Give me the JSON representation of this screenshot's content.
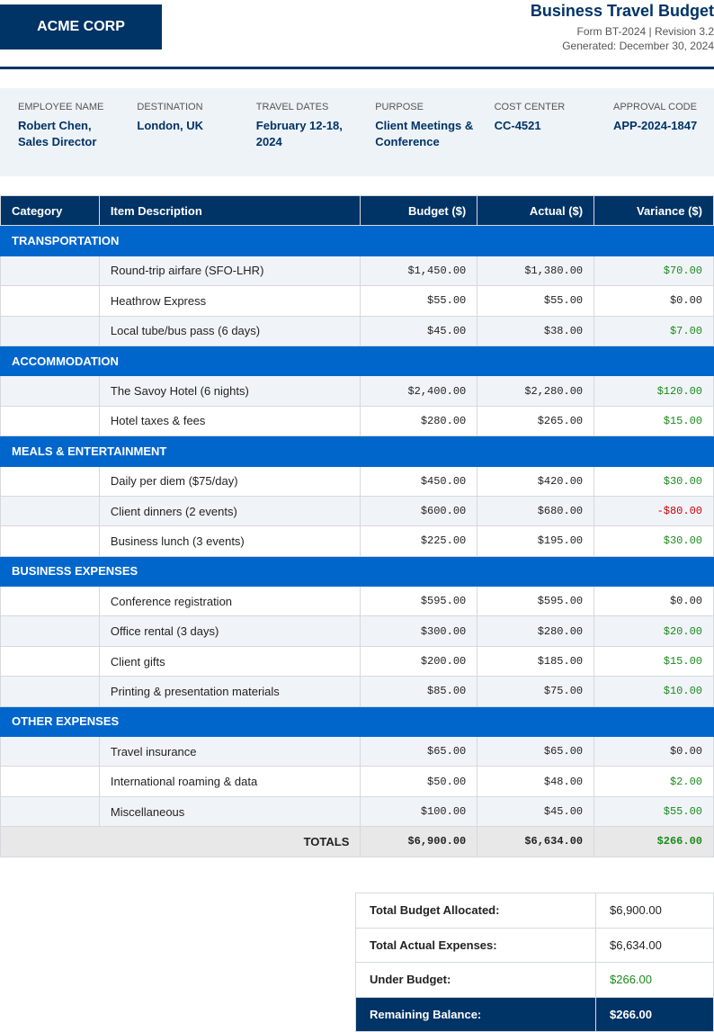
{
  "header": {
    "logo": "ACME CORP",
    "title": "Business Travel Budget",
    "form": "Form BT-2024 | Revision 3.2",
    "generated": "Generated: December 30, 2024"
  },
  "info": [
    {
      "label": "EMPLOYEE NAME",
      "value": "Robert Chen, Sales Director"
    },
    {
      "label": "DESTINATION",
      "value": "London, UK"
    },
    {
      "label": "TRAVEL DATES",
      "value": "February 12-18, 2024"
    },
    {
      "label": "PURPOSE",
      "value": "Client Meetings & Conference"
    },
    {
      "label": "COST CENTER",
      "value": "CC-4521"
    },
    {
      "label": "APPROVAL CODE",
      "value": "APP-2024-1847"
    }
  ],
  "table": {
    "columns": [
      "Category",
      "Item Description",
      "Budget ($)",
      "Actual ($)",
      "Variance ($)"
    ],
    "sections": [
      {
        "name": "TRANSPORTATION",
        "items": [
          {
            "description": "Round-trip airfare (SFO-LHR)",
            "budget": "$1,450.00",
            "actual": "$1,380.00",
            "variance": "$70.00"
          },
          {
            "description": "Heathrow Express",
            "budget": "$55.00",
            "actual": "$55.00",
            "variance": "$0.00"
          },
          {
            "description": "Local tube/bus pass (6 days)",
            "budget": "$45.00",
            "actual": "$38.00",
            "variance": "$7.00"
          }
        ]
      },
      {
        "name": "ACCOMMODATION",
        "items": [
          {
            "description": "The Savoy Hotel (6 nights)",
            "budget": "$2,400.00",
            "actual": "$2,280.00",
            "variance": "$120.00"
          },
          {
            "description": "Hotel taxes & fees",
            "budget": "$280.00",
            "actual": "$265.00",
            "variance": "$15.00"
          }
        ]
      },
      {
        "name": "MEALS & ENTERTAINMENT",
        "items": [
          {
            "description": "Daily per diem ($75/day)",
            "budget": "$450.00",
            "actual": "$420.00",
            "variance": "$30.00"
          },
          {
            "description": "Client dinners (2 events)",
            "budget": "$600.00",
            "actual": "$680.00",
            "variance": "-$80.00"
          },
          {
            "description": "Business lunch (3 events)",
            "budget": "$225.00",
            "actual": "$195.00",
            "variance": "$30.00"
          }
        ]
      },
      {
        "name": "BUSINESS EXPENSES",
        "items": [
          {
            "description": "Conference registration",
            "budget": "$595.00",
            "actual": "$595.00",
            "variance": "$0.00"
          },
          {
            "description": "Office rental (3 days)",
            "budget": "$300.00",
            "actual": "$280.00",
            "variance": "$20.00"
          },
          {
            "description": "Client gifts",
            "budget": "$200.00",
            "actual": "$185.00",
            "variance": "$15.00"
          },
          {
            "description": "Printing & presentation materials",
            "budget": "$85.00",
            "actual": "$75.00",
            "variance": "$10.00"
          }
        ]
      },
      {
        "name": "OTHER EXPENSES",
        "items": [
          {
            "description": "Travel insurance",
            "budget": "$65.00",
            "actual": "$65.00",
            "variance": "$0.00"
          },
          {
            "description": "International roaming & data",
            "budget": "$50.00",
            "actual": "$48.00",
            "variance": "$2.00"
          },
          {
            "description": "Miscellaneous",
            "budget": "$100.00",
            "actual": "$45.00",
            "variance": "$55.00"
          }
        ]
      }
    ],
    "totals": {
      "label": "TOTALS",
      "budget": "$6,900.00",
      "actual": "$6,634.00",
      "variance": "$266.00"
    }
  },
  "summary": [
    {
      "label": "Total Budget Allocated:",
      "value": "$6,900.00"
    },
    {
      "label": "Total Actual Expenses:",
      "value": "$6,634.00"
    },
    {
      "label": "Under Budget:",
      "value": "$266.00"
    },
    {
      "label": "Remaining Balance:",
      "value": "$266.00"
    }
  ]
}
